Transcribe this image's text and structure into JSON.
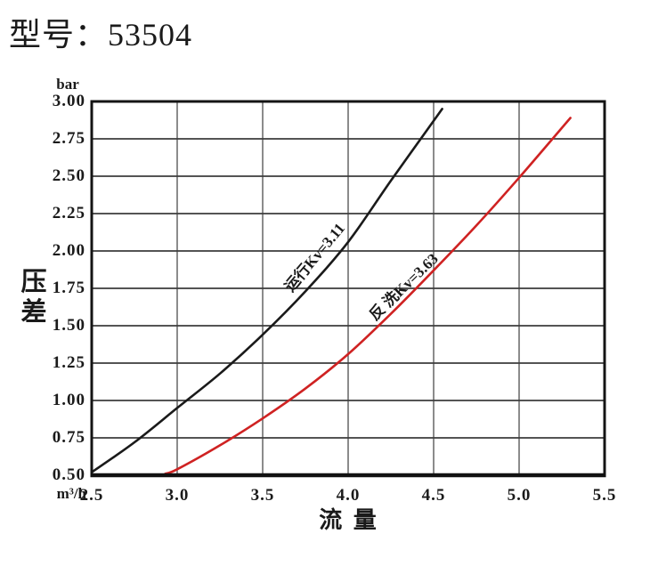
{
  "page": {
    "title": "型号：53504"
  },
  "chart_data": {
    "type": "line",
    "title": "型号：53504",
    "xlabel": "流 量",
    "ylabel": "压差",
    "x_unit": "m³/h",
    "y_unit": "bar",
    "xlim": [
      2.5,
      5.5
    ],
    "ylim": [
      0.5,
      3.0
    ],
    "x_tick_labels": [
      "2.5",
      "3.0",
      "3.5",
      "4.0",
      "4.5",
      "5.0",
      "5.5"
    ],
    "y_tick_labels": [
      "3.00",
      "2.75",
      "2.50",
      "2.25",
      "2.00",
      "1.75",
      "1.50",
      "1.25",
      "1.00",
      "0.75",
      "0.50"
    ],
    "grid": true,
    "legend_position": "labels-on-curves",
    "series": [
      {
        "name": "运行Kv=3.11",
        "color": "#1a1a1a",
        "points": [
          [
            2.5,
            0.52
          ],
          [
            2.75,
            0.72
          ],
          [
            3.0,
            0.95
          ],
          [
            3.25,
            1.18
          ],
          [
            3.5,
            1.44
          ],
          [
            3.75,
            1.73
          ],
          [
            4.0,
            2.06
          ],
          [
            4.25,
            2.47
          ],
          [
            4.55,
            2.95
          ]
        ]
      },
      {
        "name": "反 洗Kv=3.63",
        "color": "#cf2222",
        "points": [
          [
            2.93,
            0.51
          ],
          [
            3.0,
            0.54
          ],
          [
            3.25,
            0.7
          ],
          [
            3.5,
            0.88
          ],
          [
            3.75,
            1.08
          ],
          [
            4.0,
            1.31
          ],
          [
            4.25,
            1.58
          ],
          [
            4.5,
            1.87
          ],
          [
            4.75,
            2.17
          ],
          [
            5.0,
            2.49
          ],
          [
            5.3,
            2.89
          ]
        ]
      }
    ]
  }
}
